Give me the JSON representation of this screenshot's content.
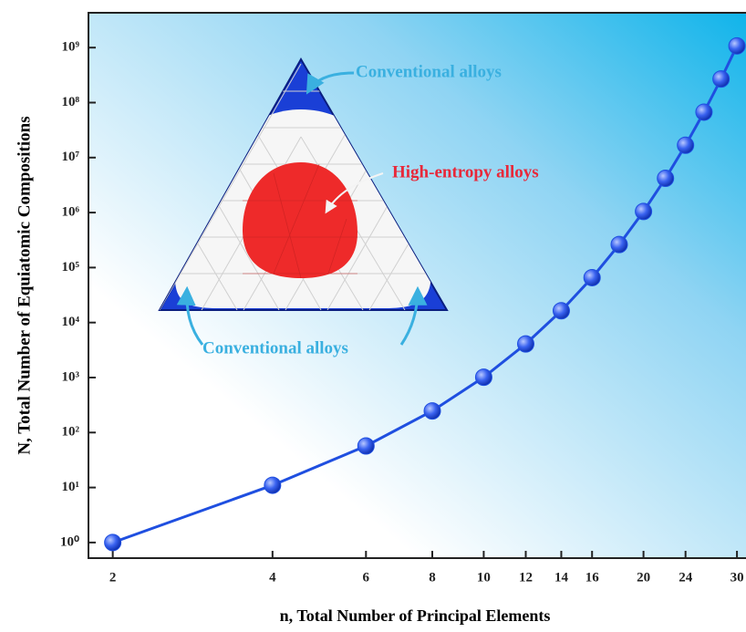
{
  "chart_data": {
    "type": "line",
    "xlabel": "n, Total Number of Principal Elements",
    "ylabel": "N, Total Number of Equiatomic Compositions",
    "annotations": [
      "Conventional alloys",
      "High-entropy alloys",
      "Conventional alloys"
    ],
    "x": [
      2,
      4,
      6,
      8,
      10,
      12,
      14,
      16,
      18,
      20,
      22,
      24,
      26,
      28,
      30
    ],
    "series": [
      {
        "name": "N",
        "color": "#1f4fe0",
        "values": [
          1,
          11,
          57,
          247,
          1013,
          4083,
          16369,
          65519,
          262125,
          1048555,
          4194281,
          16777191,
          67108837,
          268435427,
          1073741793
        ]
      }
    ],
    "xscale": "log",
    "yscale": "log",
    "xlim": [
      1.8,
      31.2
    ],
    "ylim": [
      0.52,
      4300000000
    ],
    "xticks": [
      2,
      4,
      6,
      8,
      10,
      12,
      14,
      16,
      20,
      24,
      30
    ],
    "yticks": [
      {
        "value": 1,
        "label": "10⁰"
      },
      {
        "value": 10,
        "label": "10¹"
      },
      {
        "value": 100,
        "label": "10²"
      },
      {
        "value": 1000,
        "label": "10³"
      },
      {
        "value": 10000,
        "label": "10⁴"
      },
      {
        "value": 100000,
        "label": "10⁵"
      },
      {
        "value": 1000000,
        "label": "10⁶"
      },
      {
        "value": 10000000,
        "label": "10⁷"
      },
      {
        "value": 100000000,
        "label": "10⁸"
      },
      {
        "value": 1000000000,
        "label": "10⁹"
      }
    ]
  }
}
